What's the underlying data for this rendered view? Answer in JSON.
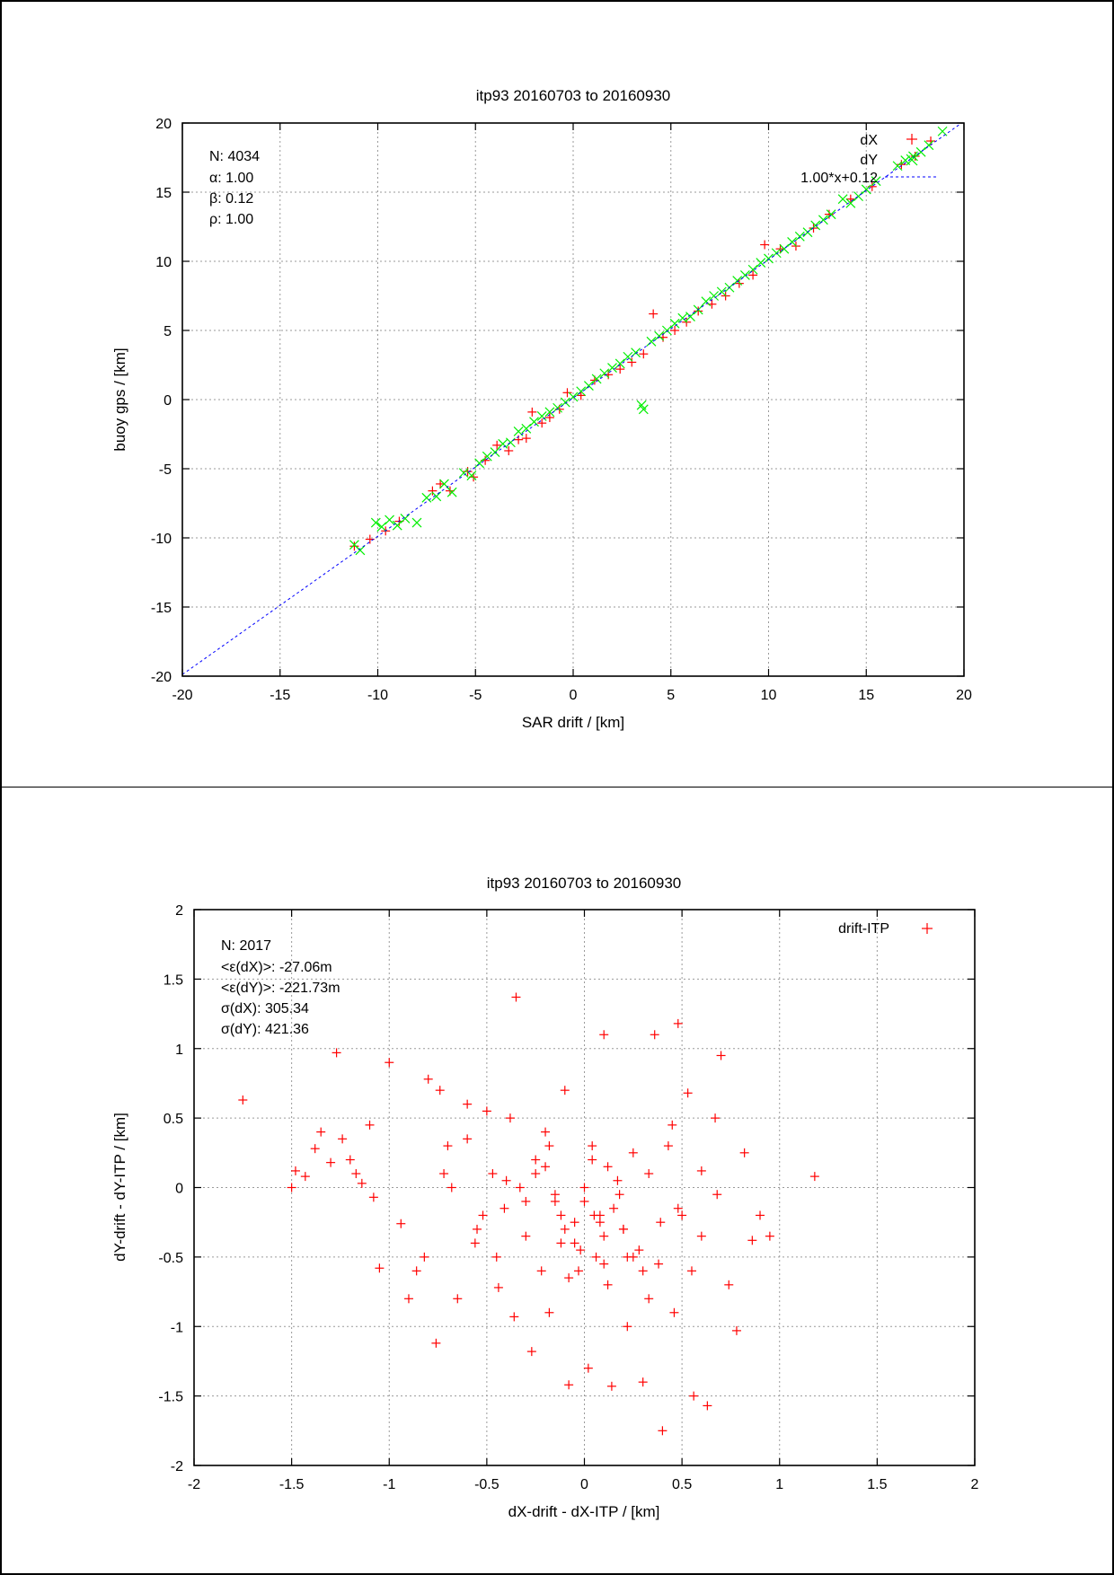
{
  "chart_data": [
    {
      "type": "scatter",
      "title": "itp93 20160703 to 20160930",
      "xlabel": "SAR drift / [km]",
      "ylabel": "buoy gps / [km]",
      "xlim": [
        -20,
        20
      ],
      "ylim": [
        -20,
        20
      ],
      "xticks": [
        "-20",
        "-15",
        "-10",
        "-5",
        "0",
        "5",
        "10",
        "15",
        "20"
      ],
      "yticks": [
        "20",
        "15",
        "10",
        "5",
        "0",
        "-5",
        "-10",
        "-15",
        "-20"
      ],
      "grid": true,
      "legend_position": "top-right",
      "annotations": [
        "N: 4034",
        "α: 1.00",
        "β: 0.12",
        "ρ: 1.00"
      ],
      "fit_line": {
        "slope": 1.0,
        "intercept": 0.12,
        "label": "1.00*x+0.12",
        "color": "#0000ff"
      },
      "series": [
        {
          "name": "dX",
          "marker": "+",
          "color": "#ff0000",
          "x": [
            -11.2,
            -10.4,
            -9.6,
            -8.9,
            -7.2,
            -6.8,
            -6.3,
            -5.4,
            -5.1,
            -4.5,
            -3.9,
            -3.3,
            -2.8,
            -2.4,
            -2.1,
            -1.6,
            -1.2,
            -0.7,
            -0.3,
            0.4,
            1.1,
            1.8,
            2.4,
            3.0,
            3.6,
            4.1,
            4.6,
            5.2,
            5.8,
            6.4,
            7.1,
            7.8,
            8.5,
            9.2,
            9.8,
            10.6,
            11.4,
            12.3,
            13.1,
            14.2,
            15.3,
            16.8,
            17.5,
            18.3
          ],
          "y": [
            -10.6,
            -10.1,
            -9.5,
            -8.8,
            -6.6,
            -6.1,
            -6.6,
            -5.2,
            -5.6,
            -4.4,
            -3.3,
            -3.7,
            -2.9,
            -2.8,
            -0.9,
            -1.7,
            -1.3,
            -0.7,
            0.5,
            0.3,
            1.4,
            1.8,
            2.2,
            2.7,
            3.3,
            6.2,
            4.5,
            5.0,
            5.6,
            6.4,
            6.9,
            7.5,
            8.4,
            9.0,
            11.2,
            10.9,
            11.1,
            12.4,
            13.4,
            14.5,
            15.4,
            17.0,
            17.6,
            18.7
          ]
        },
        {
          "name": "dY",
          "marker": "x",
          "color": "#00ee00",
          "x": [
            -11.2,
            -10.9,
            -10.1,
            -9.8,
            -9.4,
            -9.0,
            -8.6,
            -8.0,
            -7.5,
            -7.0,
            -6.6,
            -6.2,
            -5.6,
            -5.2,
            -4.8,
            -4.4,
            -4.0,
            -3.6,
            -3.2,
            -2.8,
            -2.4,
            -2.0,
            -1.6,
            -1.2,
            -0.8,
            -0.4,
            0.0,
            0.4,
            0.8,
            1.2,
            1.6,
            2.0,
            2.4,
            2.8,
            3.2,
            3.5,
            3.6,
            4.0,
            4.4,
            4.8,
            5.2,
            5.6,
            6.0,
            6.4,
            6.8,
            7.2,
            7.6,
            8.0,
            8.4,
            8.8,
            9.2,
            9.6,
            10.0,
            10.4,
            10.8,
            11.2,
            11.6,
            12.0,
            12.4,
            12.8,
            13.2,
            13.8,
            14.2,
            14.6,
            15.0,
            15.5,
            16.6,
            17.0,
            17.4,
            17.8,
            18.2,
            18.9
          ],
          "y": [
            -10.5,
            -10.9,
            -8.9,
            -9.2,
            -8.7,
            -9.1,
            -8.6,
            -8.9,
            -7.1,
            -7.0,
            -6.1,
            -6.7,
            -5.3,
            -5.5,
            -4.6,
            -4.1,
            -3.8,
            -3.2,
            -3.1,
            -2.3,
            -2.1,
            -1.6,
            -1.2,
            -0.9,
            -0.6,
            -0.2,
            0.2,
            0.6,
            1.0,
            1.5,
            1.9,
            2.3,
            2.6,
            3.1,
            3.4,
            -0.4,
            -0.7,
            4.2,
            4.6,
            5.0,
            5.5,
            5.9,
            6.0,
            6.5,
            7.1,
            7.5,
            7.8,
            8.1,
            8.6,
            9.0,
            9.4,
            9.9,
            10.2,
            10.6,
            10.9,
            11.4,
            11.8,
            12.1,
            12.6,
            13.0,
            13.4,
            14.5,
            14.2,
            14.7,
            15.2,
            15.8,
            16.9,
            17.3,
            17.6,
            17.9,
            18.4,
            19.4
          ]
        }
      ]
    },
    {
      "type": "scatter",
      "title": "itp93 20160703 to 20160930",
      "xlabel": "dX-drift - dX-ITP / [km]",
      "ylabel": "dY-drift - dY-ITP / [km]",
      "xlim": [
        -2,
        2
      ],
      "ylim": [
        -2,
        2
      ],
      "xticks": [
        "-2",
        "-1.5",
        "-1",
        "-0.5",
        "0",
        "0.5",
        "1",
        "1.5",
        "2"
      ],
      "yticks": [
        "2",
        "1.5",
        "1",
        "0.5",
        "0",
        "-0.5",
        "-1",
        "-1.5",
        "-2"
      ],
      "grid": true,
      "legend_position": "top-right",
      "annotations": [
        "N: 2017",
        "<ε(dX)>:  -27.06m",
        "<ε(dY)>: -221.73m",
        "σ(dX):  305.34",
        "σ(dY):  421.36"
      ],
      "series": [
        {
          "name": "drift-ITP",
          "marker": "+",
          "color": "#ff0000",
          "x": [
            -1.75,
            -1.5,
            -1.48,
            -1.43,
            -1.38,
            -1.35,
            -1.3,
            -1.27,
            -1.24,
            -1.2,
            -1.17,
            -1.14,
            -1.1,
            -1.08,
            -1.05,
            -1.0,
            -0.94,
            -0.9,
            -0.86,
            -0.82,
            -0.8,
            -0.76,
            -0.74,
            -0.72,
            -0.7,
            -0.68,
            -0.65,
            -0.6,
            -0.56,
            -0.52,
            -0.5,
            -0.47,
            -0.44,
            -0.41,
            -0.38,
            -0.36,
            -0.33,
            -0.3,
            -0.27,
            -0.25,
            -0.22,
            -0.2,
            -0.18,
            -0.15,
            -0.12,
            -0.1,
            -0.08,
            -0.05,
            -0.03,
            0.0,
            0.02,
            0.04,
            0.06,
            0.08,
            0.1,
            0.12,
            0.14,
            0.17,
            0.2,
            0.22,
            0.25,
            0.28,
            0.3,
            0.33,
            0.36,
            0.38,
            0.4,
            0.43,
            0.46,
            0.48,
            0.5,
            0.53,
            0.56,
            0.6,
            0.63,
            0.67,
            0.7,
            0.74,
            0.78,
            0.82,
            0.86,
            0.9,
            0.95,
            1.18,
            -0.35,
            0.48,
            0.39,
            0.1,
            0.68,
            -0.55,
            -0.4,
            0.2,
            -0.15,
            0.05,
            -0.05,
            0.15,
            -0.25,
            0.25,
            -0.1,
            0.0,
            0.08,
            -0.02,
            0.12,
            -0.18,
            0.3,
            -0.3,
            0.18,
            0.22,
            -0.08,
            0.04,
            0.6,
            0.33,
            -0.6,
            -0.45,
            0.45,
            0.55,
            -0.2,
            0.1,
            -0.12
          ],
          "y": [
            0.63,
            0.0,
            0.12,
            0.08,
            0.28,
            0.4,
            0.18,
            0.97,
            0.35,
            0.2,
            0.1,
            0.03,
            0.45,
            -0.07,
            -0.58,
            0.9,
            -0.26,
            -0.8,
            -0.6,
            -0.5,
            0.78,
            -1.12,
            0.7,
            0.1,
            0.3,
            0.0,
            -0.8,
            0.35,
            -0.4,
            -0.2,
            0.55,
            0.1,
            -0.72,
            -0.15,
            0.5,
            -0.93,
            0.0,
            -0.35,
            -1.18,
            0.2,
            -0.6,
            0.15,
            -0.9,
            -0.05,
            -0.4,
            0.7,
            -1.42,
            -0.25,
            -0.6,
            -0.1,
            -1.3,
            0.3,
            -0.5,
            -0.2,
            1.1,
            -0.7,
            -1.43,
            0.05,
            -0.3,
            -1.0,
            0.25,
            -0.45,
            -1.4,
            0.1,
            1.1,
            -0.55,
            -1.75,
            0.3,
            -0.9,
            1.18,
            -0.2,
            0.68,
            -1.5,
            -0.35,
            -1.57,
            0.5,
            0.95,
            -0.7,
            -1.03,
            0.25,
            -0.38,
            -0.2,
            -0.35,
            0.08,
            1.37,
            -0.15,
            -0.25,
            -0.35,
            -0.05,
            -0.3,
            0.05,
            -0.3,
            -0.1,
            -0.2,
            -0.4,
            -0.15,
            0.1,
            -0.5,
            -0.3,
            0.0,
            -0.25,
            -0.45,
            0.15,
            0.3,
            -0.6,
            -0.1,
            -0.05,
            -0.5,
            -0.65,
            0.2,
            0.12,
            -0.8,
            0.6,
            -0.5,
            0.45,
            -0.6,
            0.4,
            -0.55,
            -0.2
          ]
        }
      ]
    }
  ]
}
